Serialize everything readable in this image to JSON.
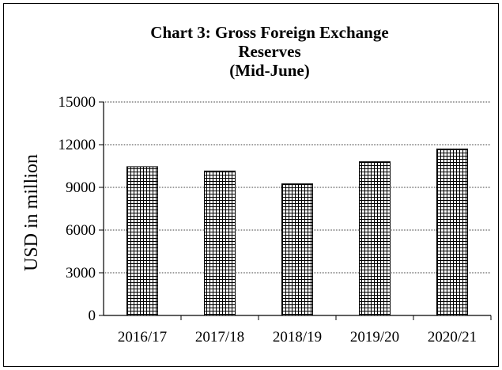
{
  "chart_data": {
    "type": "bar",
    "title_lines": [
      "Chart  3: Gross Foreign Exchange",
      "Reserves",
      "(Mid-June)"
    ],
    "xlabel": "",
    "ylabel": "USD in million",
    "categories": [
      "2016/17",
      "2017/18",
      "2018/19",
      "2019/20",
      "2020/21"
    ],
    "values": [
      10450,
      10150,
      9250,
      10800,
      11700
    ],
    "ylim": [
      0,
      15000
    ],
    "yticks": [
      0,
      3000,
      6000,
      9000,
      12000,
      15000
    ],
    "grid": "horizontal dotted",
    "bar_fill": "crosshatch",
    "colors": {
      "bar_pattern": "#000000",
      "grid": "#000000",
      "background": "#ffffff"
    }
  }
}
